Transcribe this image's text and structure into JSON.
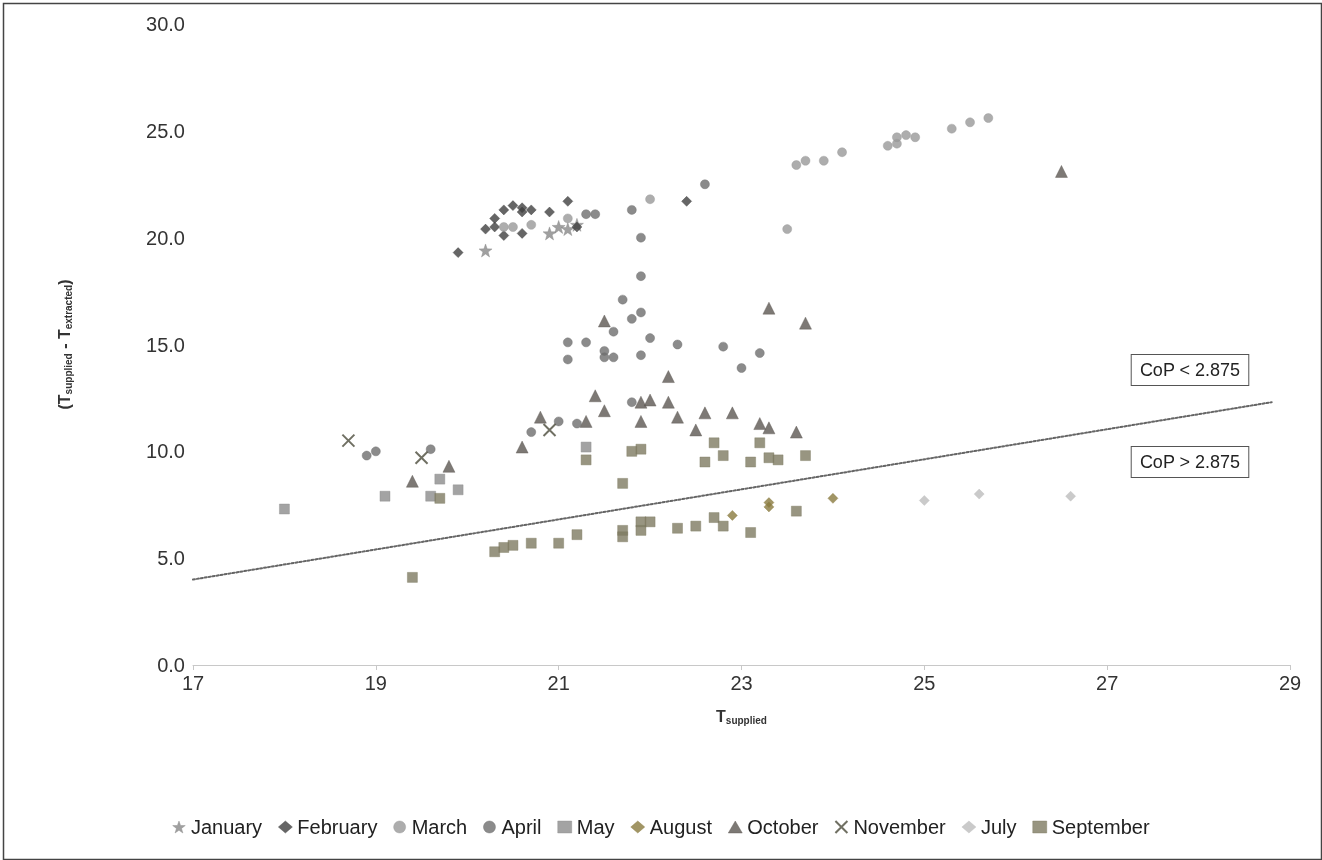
{
  "chart_data": {
    "type": "scatter",
    "xlabel": "T$_{supplied}$",
    "ylabel": "(T$_{supplied}$ - T$_{extracted}$)",
    "xlim": [
      17,
      29
    ],
    "xticks": [
      17,
      19,
      21,
      23,
      25,
      27,
      29
    ],
    "ylim": [
      0,
      30
    ],
    "yticks": [
      {
        "value": 0,
        "label": "0.0"
      },
      {
        "value": 5,
        "label": "5.0"
      },
      {
        "value": 10,
        "label": "10.0"
      },
      {
        "value": 15,
        "label": "15.0"
      },
      {
        "value": 20,
        "label": "20.0"
      },
      {
        "value": 25,
        "label": "25.0"
      },
      {
        "value": 30,
        "label": "30.0"
      }
    ],
    "grid": false,
    "legend": "bottom",
    "series": [
      {
        "name": "January",
        "color": "#888888",
        "marker": "star",
        "x": [
          20.2,
          20.9,
          21.0,
          21.1,
          21.2
        ],
        "values": [
          19.4,
          20.2,
          20.5,
          20.4,
          20.6
        ]
      },
      {
        "name": "February",
        "color": "#404040",
        "marker": "diamond",
        "x": [
          19.9,
          20.2,
          20.3,
          20.3,
          20.4,
          20.5,
          20.6,
          20.6,
          20.7,
          20.4,
          20.6,
          20.9,
          21.1,
          21.2,
          22.4
        ],
        "values": [
          19.3,
          20.4,
          20.9,
          20.5,
          21.3,
          21.5,
          21.4,
          21.2,
          21.3,
          20.1,
          20.2,
          21.2,
          21.7,
          20.5,
          21.7
        ]
      },
      {
        "name": "March",
        "color": "#999999",
        "marker": "circle",
        "x": [
          20.4,
          20.5,
          20.7,
          21.1,
          22.0,
          23.6,
          23.7,
          23.9,
          24.1,
          24.6,
          24.7,
          24.7,
          24.8,
          24.9,
          25.3,
          25.5,
          25.7,
          23.5
        ],
        "values": [
          20.5,
          20.5,
          20.6,
          20.9,
          21.8,
          23.4,
          23.6,
          23.6,
          24.0,
          24.3,
          24.4,
          24.7,
          24.8,
          24.7,
          25.1,
          25.4,
          25.6,
          20.4
        ]
      },
      {
        "name": "April",
        "color": "#6e6e6e",
        "marker": "circle",
        "x": [
          21.3,
          21.4,
          21.8,
          22.6,
          21.9,
          21.9,
          21.7,
          21.9,
          21.8,
          21.6,
          22.0,
          22.3,
          22.8,
          23.2,
          23.0,
          21.5,
          21.5,
          21.6,
          21.9,
          21.8,
          21.1,
          21.1,
          21.3,
          18.9,
          19.0,
          19.6,
          20.7,
          21.0,
          21.2
        ],
        "values": [
          21.1,
          21.1,
          21.3,
          22.5,
          20.0,
          18.2,
          17.1,
          16.5,
          16.2,
          15.6,
          15.3,
          15.0,
          14.9,
          14.6,
          13.9,
          14.7,
          14.4,
          14.4,
          14.5,
          12.3,
          15.1,
          14.3,
          15.1,
          9.8,
          10.0,
          10.1,
          10.9,
          11.4,
          11.3
        ]
      },
      {
        "name": "May",
        "color": "#8c8c8c",
        "marker": "square",
        "x": [
          18.0,
          19.1,
          19.6,
          19.7,
          19.9,
          21.3
        ],
        "values": [
          7.3,
          7.9,
          7.9,
          8.7,
          8.2,
          10.2
        ]
      },
      {
        "name": "August",
        "color": "#8a7a3e",
        "marker": "diamond",
        "x": [
          22.9,
          23.3,
          23.3,
          24.0
        ],
        "values": [
          7.0,
          7.6,
          7.4,
          7.8
        ]
      },
      {
        "name": "October",
        "color": "#5c5853",
        "marker": "triangle",
        "x": [
          19.4,
          19.8,
          20.6,
          20.8,
          21.3,
          21.4,
          21.5,
          21.9,
          22.0,
          21.9,
          22.2,
          22.2,
          22.3,
          22.5,
          22.6,
          22.9,
          23.3,
          23.7,
          21.5,
          23.2,
          23.3,
          23.6,
          26.5
        ],
        "values": [
          8.6,
          9.3,
          10.2,
          11.6,
          11.4,
          12.6,
          11.9,
          12.3,
          12.4,
          11.4,
          12.3,
          13.5,
          11.6,
          11.0,
          11.8,
          11.8,
          16.7,
          16.0,
          16.1,
          11.3,
          11.1,
          10.9,
          23.1
        ]
      },
      {
        "name": "November",
        "color": "#4c4c3c",
        "marker": "cross",
        "x": [
          18.7,
          19.5,
          20.9
        ],
        "values": [
          10.5,
          9.7,
          11.0
        ]
      },
      {
        "name": "July",
        "color": "#bdbdbd",
        "marker": "diamond",
        "x": [
          25.0,
          25.6,
          26.6
        ],
        "values": [
          7.7,
          8.0,
          7.9
        ]
      },
      {
        "name": "September",
        "color": "#7e7a62",
        "marker": "square",
        "x": [
          19.4,
          20.3,
          20.4,
          20.5,
          20.7,
          21.0,
          21.2,
          21.7,
          21.7,
          21.9,
          21.9,
          22.0,
          22.3,
          22.5,
          22.7,
          22.8,
          23.1,
          23.6,
          21.3,
          21.7,
          21.8,
          21.9,
          22.7,
          22.8,
          22.6,
          23.1,
          23.2,
          23.3,
          23.4,
          23.7,
          19.7
        ],
        "values": [
          4.1,
          5.3,
          5.5,
          5.6,
          5.7,
          5.7,
          6.1,
          6.3,
          6.0,
          6.7,
          6.3,
          6.7,
          6.4,
          6.5,
          6.9,
          6.5,
          6.2,
          7.2,
          9.6,
          8.5,
          10.0,
          10.1,
          10.4,
          9.8,
          9.5,
          9.5,
          10.4,
          9.7,
          9.6,
          9.8,
          7.8
        ]
      },
      {
        "type": "line",
        "color": "#666666",
        "marker": "none",
        "line_style": "dotted",
        "x": [
          17,
          28.8
        ],
        "values": [
          4.0,
          12.3
        ]
      }
    ],
    "annotations": [
      "CoP < 2.875",
      "CoP > 2.875"
    ]
  }
}
